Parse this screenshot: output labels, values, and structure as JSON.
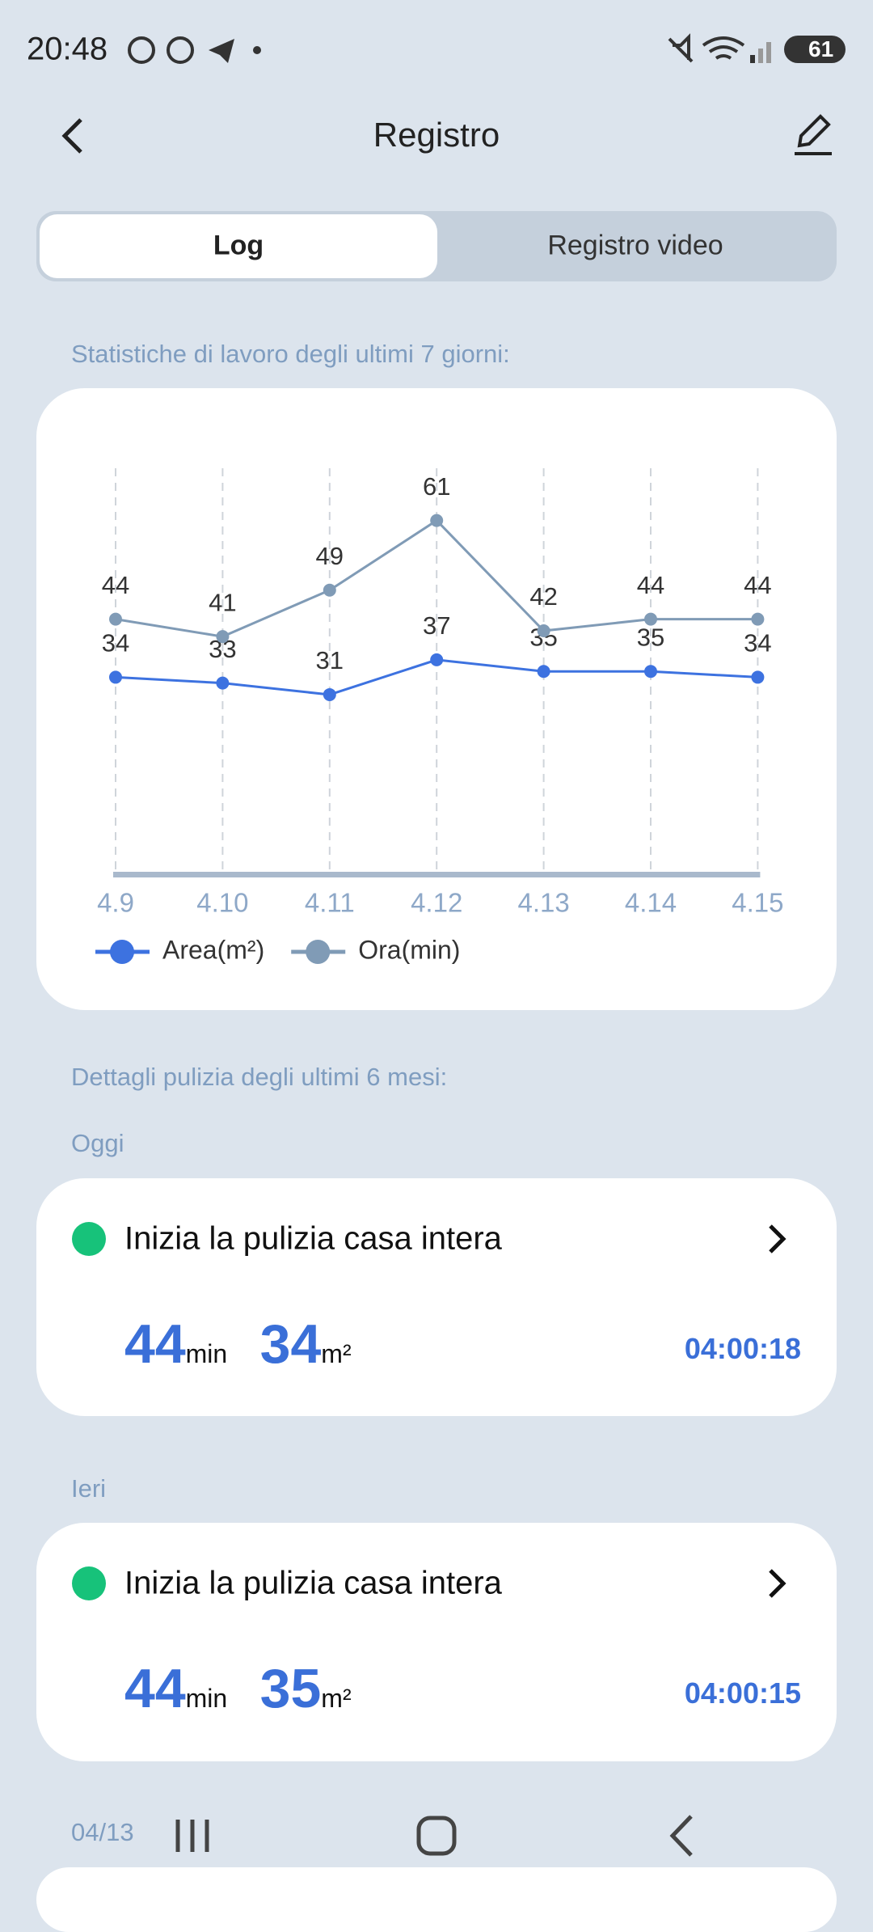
{
  "status_bar": {
    "time": "20:48",
    "battery": "61"
  },
  "header": {
    "title": "Registro"
  },
  "tabs": [
    "Log",
    "Registro video"
  ],
  "stats_label": "Statistiche di lavoro degli ultimi 7 giorni:",
  "chart_data": {
    "type": "line",
    "categories": [
      "4.9",
      "4.10",
      "4.11",
      "4.12",
      "4.13",
      "4.14",
      "4.15"
    ],
    "series": [
      {
        "name": "Area(m²)",
        "color": "#3d72e0",
        "values": [
          34,
          33,
          31,
          37,
          35,
          35,
          34
        ]
      },
      {
        "name": "Ora(min)",
        "color": "#809bb6",
        "values": [
          44,
          41,
          49,
          61,
          42,
          44,
          44
        ]
      }
    ],
    "ylim": [
      0,
      70
    ],
    "grid": true
  },
  "details_label": "Dettagli pulizia degli ultimi 6 mesi:",
  "records": [
    {
      "date": "Oggi",
      "title": "Inizia la pulizia casa intera",
      "minutes": "44",
      "minutes_unit": "min",
      "area": "34",
      "area_unit": "m²",
      "time": "04:00:18"
    },
    {
      "date": "Ieri",
      "title": "Inizia la pulizia casa intera",
      "minutes": "44",
      "minutes_unit": "min",
      "area": "35",
      "area_unit": "m²",
      "time": "04:00:15"
    }
  ],
  "next_date": "04/13"
}
